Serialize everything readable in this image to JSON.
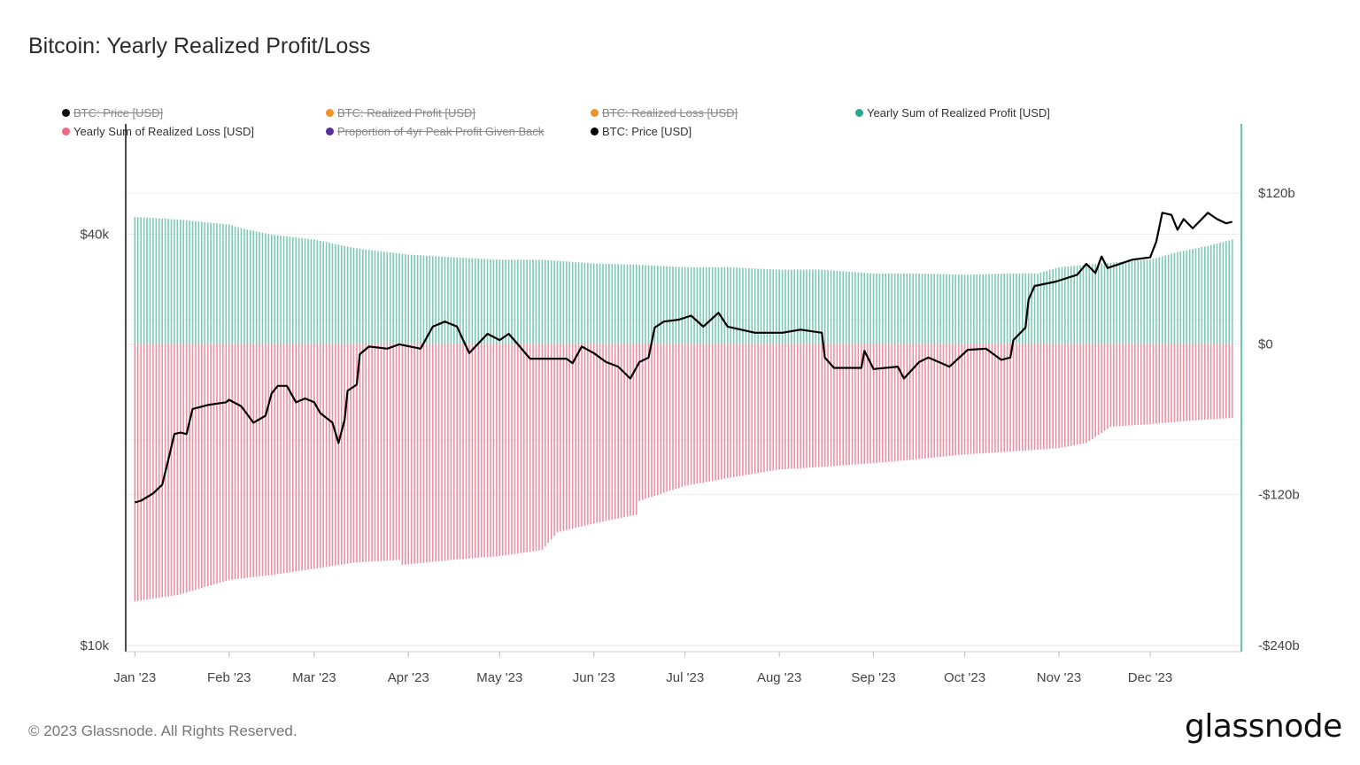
{
  "title": "Bitcoin: Yearly Realized Profit/Loss",
  "legend": [
    {
      "label": "BTC: Price [USD]",
      "color": "#111111",
      "hidden": true
    },
    {
      "label": "BTC: Realized Profit [USD]",
      "color": "#f0932b",
      "hidden": true
    },
    {
      "label": "BTC: Realized Loss [USD]",
      "color": "#f0932b",
      "hidden": true
    },
    {
      "label": "Yearly Sum of Realized Profit [USD]",
      "color": "#26a98b",
      "hidden": false
    },
    {
      "label": "Yearly Sum of Realized Loss [USD]",
      "color": "#ee6a84",
      "hidden": false
    },
    {
      "label": "Proportion of 4yr Peak Profit Given Back",
      "color": "#5b2ca0",
      "hidden": true
    },
    {
      "label": "BTC: Price [USD]",
      "color": "#000000",
      "hidden": false
    }
  ],
  "footer": "© 2023 Glassnode. All Rights Reserved.",
  "logo": "glassnode",
  "chart_data": {
    "type": "bar",
    "title": "Bitcoin: Yearly Realized Profit/Loss",
    "x_ticks": [
      "Jan '23",
      "Feb '23",
      "Mar '23",
      "Apr '23",
      "May '23",
      "Jun '23",
      "Jul '23",
      "Aug '23",
      "Sep '23",
      "Oct '23",
      "Nov '23",
      "Dec '23"
    ],
    "x_tick_dates": [
      "2023-01-01",
      "2023-02-01",
      "2023-03-01",
      "2023-04-01",
      "2023-05-01",
      "2023-06-01",
      "2023-07-01",
      "2023-08-01",
      "2023-09-01",
      "2023-10-01",
      "2023-11-01",
      "2023-12-01"
    ],
    "xlim": [
      "2022-12-29",
      "2023-12-31"
    ],
    "left_axis": {
      "scale": "log",
      "ticks": [
        {
          "value": 40000,
          "label": "$40k"
        },
        {
          "value": 10000,
          "label": "$10k"
        }
      ],
      "ylim": [
        9800,
        58000
      ]
    },
    "right_axis": {
      "scale": "linear",
      "unit": "USD billions",
      "ticks": [
        {
          "value": 120,
          "label": "$120b"
        },
        {
          "value": 0,
          "label": "$0"
        },
        {
          "value": -120,
          "label": "-$120b"
        },
        {
          "value": -240,
          "label": "-$240b"
        }
      ],
      "ylim": [
        -245,
        175
      ]
    },
    "grid": true,
    "legend_position": "top",
    "series": [
      {
        "name": "Yearly Sum of Realized Profit [USD]",
        "type": "bar",
        "axis": "right",
        "color": "#7ccab5",
        "points": [
          [
            "2023-01-01",
            101
          ],
          [
            "2023-01-15",
            99
          ],
          [
            "2023-02-01",
            95
          ],
          [
            "2023-02-05",
            92
          ],
          [
            "2023-02-15",
            87
          ],
          [
            "2023-03-01",
            83
          ],
          [
            "2023-03-15",
            76
          ],
          [
            "2023-04-01",
            71
          ],
          [
            "2023-04-15",
            69
          ],
          [
            "2023-05-01",
            67
          ],
          [
            "2023-05-15",
            67
          ],
          [
            "2023-06-01",
            64
          ],
          [
            "2023-06-15",
            63
          ],
          [
            "2023-07-01",
            61
          ],
          [
            "2023-07-15",
            61
          ],
          [
            "2023-08-01",
            59
          ],
          [
            "2023-08-15",
            59
          ],
          [
            "2023-09-01",
            56
          ],
          [
            "2023-09-15",
            56
          ],
          [
            "2023-10-01",
            55
          ],
          [
            "2023-10-15",
            56
          ],
          [
            "2023-10-25",
            56
          ],
          [
            "2023-11-01",
            61
          ],
          [
            "2023-11-15",
            64
          ],
          [
            "2023-12-01",
            67
          ],
          [
            "2023-12-10",
            73
          ],
          [
            "2023-12-20",
            78
          ],
          [
            "2023-12-28",
            83
          ]
        ]
      },
      {
        "name": "Yearly Sum of Realized Loss [USD]",
        "type": "bar",
        "axis": "right",
        "color": "#ec91a4",
        "points": [
          [
            "2023-01-01",
            -205
          ],
          [
            "2023-01-15",
            -200
          ],
          [
            "2023-02-01",
            -188
          ],
          [
            "2023-02-15",
            -184
          ],
          [
            "2023-03-01",
            -179
          ],
          [
            "2023-03-15",
            -174
          ],
          [
            "2023-03-29",
            -172
          ],
          [
            "2023-03-30",
            -176
          ],
          [
            "2023-04-15",
            -172
          ],
          [
            "2023-05-01",
            -169
          ],
          [
            "2023-05-15",
            -164
          ],
          [
            "2023-05-20",
            -150
          ],
          [
            "2023-06-01",
            -143
          ],
          [
            "2023-06-15",
            -136
          ],
          [
            "2023-06-16",
            -125
          ],
          [
            "2023-07-01",
            -113
          ],
          [
            "2023-07-15",
            -107
          ],
          [
            "2023-08-01",
            -100
          ],
          [
            "2023-08-15",
            -98
          ],
          [
            "2023-09-01",
            -95
          ],
          [
            "2023-09-15",
            -92
          ],
          [
            "2023-10-01",
            -88
          ],
          [
            "2023-10-15",
            -86
          ],
          [
            "2023-11-01",
            -83
          ],
          [
            "2023-11-10",
            -79
          ],
          [
            "2023-11-18",
            -66
          ],
          [
            "2023-12-01",
            -64
          ],
          [
            "2023-12-15",
            -61
          ],
          [
            "2023-12-28",
            -59
          ]
        ]
      },
      {
        "name": "BTC: Price [USD]",
        "type": "line",
        "axis": "left",
        "color": "#000000",
        "points": [
          [
            "2023-01-01",
            16200
          ],
          [
            "2023-01-03",
            16300
          ],
          [
            "2023-01-07",
            16700
          ],
          [
            "2023-01-10",
            17200
          ],
          [
            "2023-01-12",
            18700
          ],
          [
            "2023-01-14",
            20400
          ],
          [
            "2023-01-16",
            20500
          ],
          [
            "2023-01-18",
            20400
          ],
          [
            "2023-01-20",
            22200
          ],
          [
            "2023-01-25",
            22500
          ],
          [
            "2023-01-31",
            22700
          ],
          [
            "2023-02-01",
            22900
          ],
          [
            "2023-02-05",
            22400
          ],
          [
            "2023-02-09",
            21200
          ],
          [
            "2023-02-13",
            21700
          ],
          [
            "2023-02-15",
            23400
          ],
          [
            "2023-02-17",
            24000
          ],
          [
            "2023-02-20",
            24000
          ],
          [
            "2023-02-23",
            22700
          ],
          [
            "2023-02-26",
            23000
          ],
          [
            "2023-03-01",
            22700
          ],
          [
            "2023-03-03",
            21900
          ],
          [
            "2023-03-07",
            21200
          ],
          [
            "2023-03-09",
            19800
          ],
          [
            "2023-03-11",
            21400
          ],
          [
            "2023-03-12",
            23600
          ],
          [
            "2023-03-15",
            24100
          ],
          [
            "2023-03-16",
            26700
          ],
          [
            "2023-03-19",
            27400
          ],
          [
            "2023-03-25",
            27200
          ],
          [
            "2023-03-29",
            27600
          ],
          [
            "2023-04-05",
            27200
          ],
          [
            "2023-04-09",
            29300
          ],
          [
            "2023-04-13",
            29800
          ],
          [
            "2023-04-17",
            29300
          ],
          [
            "2023-04-19",
            28000
          ],
          [
            "2023-04-21",
            26800
          ],
          [
            "2023-04-27",
            28600
          ],
          [
            "2023-05-01",
            28000
          ],
          [
            "2023-05-04",
            28600
          ],
          [
            "2023-05-07",
            27600
          ],
          [
            "2023-05-11",
            26300
          ],
          [
            "2023-05-17",
            26300
          ],
          [
            "2023-05-23",
            26300
          ],
          [
            "2023-05-25",
            25900
          ],
          [
            "2023-05-28",
            27400
          ],
          [
            "2023-06-01",
            26800
          ],
          [
            "2023-06-05",
            26000
          ],
          [
            "2023-06-09",
            25600
          ],
          [
            "2023-06-13",
            24600
          ],
          [
            "2023-06-16",
            26000
          ],
          [
            "2023-06-19",
            26400
          ],
          [
            "2023-06-21",
            29200
          ],
          [
            "2023-06-24",
            29800
          ],
          [
            "2023-06-29",
            30000
          ],
          [
            "2023-07-03",
            30400
          ],
          [
            "2023-07-07",
            29300
          ],
          [
            "2023-07-12",
            30700
          ],
          [
            "2023-07-15",
            29300
          ],
          [
            "2023-07-24",
            28700
          ],
          [
            "2023-08-02",
            28700
          ],
          [
            "2023-08-08",
            29000
          ],
          [
            "2023-08-15",
            28700
          ],
          [
            "2023-08-16",
            26400
          ],
          [
            "2023-08-19",
            25500
          ],
          [
            "2023-08-28",
            25500
          ],
          [
            "2023-08-29",
            27000
          ],
          [
            "2023-09-01",
            25400
          ],
          [
            "2023-09-09",
            25600
          ],
          [
            "2023-09-11",
            24600
          ],
          [
            "2023-09-16",
            26000
          ],
          [
            "2023-09-19",
            26400
          ],
          [
            "2023-09-26",
            25600
          ],
          [
            "2023-10-02",
            27100
          ],
          [
            "2023-10-08",
            27200
          ],
          [
            "2023-10-13",
            26200
          ],
          [
            "2023-10-16",
            26400
          ],
          [
            "2023-10-17",
            28000
          ],
          [
            "2023-10-21",
            29200
          ],
          [
            "2023-10-22",
            32100
          ],
          [
            "2023-10-24",
            33600
          ],
          [
            "2023-10-31",
            34100
          ],
          [
            "2023-11-07",
            34900
          ],
          [
            "2023-11-10",
            36200
          ],
          [
            "2023-11-13",
            35100
          ],
          [
            "2023-11-15",
            37100
          ],
          [
            "2023-11-17",
            35700
          ],
          [
            "2023-11-25",
            36700
          ],
          [
            "2023-12-01",
            37000
          ],
          [
            "2023-12-03",
            39000
          ],
          [
            "2023-12-05",
            43000
          ],
          [
            "2023-12-08",
            42700
          ],
          [
            "2023-12-10",
            40600
          ],
          [
            "2023-12-12",
            42100
          ],
          [
            "2023-12-15",
            40800
          ],
          [
            "2023-12-20",
            43000
          ],
          [
            "2023-12-23",
            42100
          ],
          [
            "2023-12-26",
            41500
          ],
          [
            "2023-12-28",
            41700
          ]
        ]
      }
    ]
  }
}
